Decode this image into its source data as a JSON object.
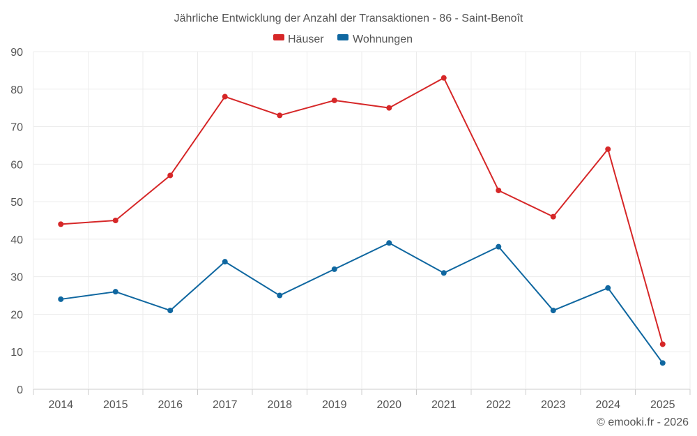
{
  "chart_data": {
    "type": "line",
    "title": "Jährliche Entwicklung der Anzahl der Transaktionen - 86 - Saint-Benoît",
    "categories": [
      "2014",
      "2015",
      "2016",
      "2017",
      "2018",
      "2019",
      "2020",
      "2021",
      "2022",
      "2023",
      "2024",
      "2025"
    ],
    "series": [
      {
        "name": "Häuser",
        "color": "#d62728",
        "values": [
          44,
          45,
          57,
          78,
          73,
          77,
          75,
          83,
          53,
          46,
          64,
          12
        ]
      },
      {
        "name": "Wohnungen",
        "color": "#0f67a0",
        "values": [
          24,
          26,
          21,
          34,
          25,
          32,
          39,
          31,
          38,
          21,
          27,
          7
        ]
      }
    ],
    "ylim": [
      0,
      90
    ],
    "yticks": [
      0,
      10,
      20,
      30,
      40,
      50,
      60,
      70,
      80,
      90
    ],
    "grid": true,
    "legend": "top-center",
    "xlabel": "",
    "ylabel": ""
  },
  "credit": "© emooki.fr - 2026"
}
